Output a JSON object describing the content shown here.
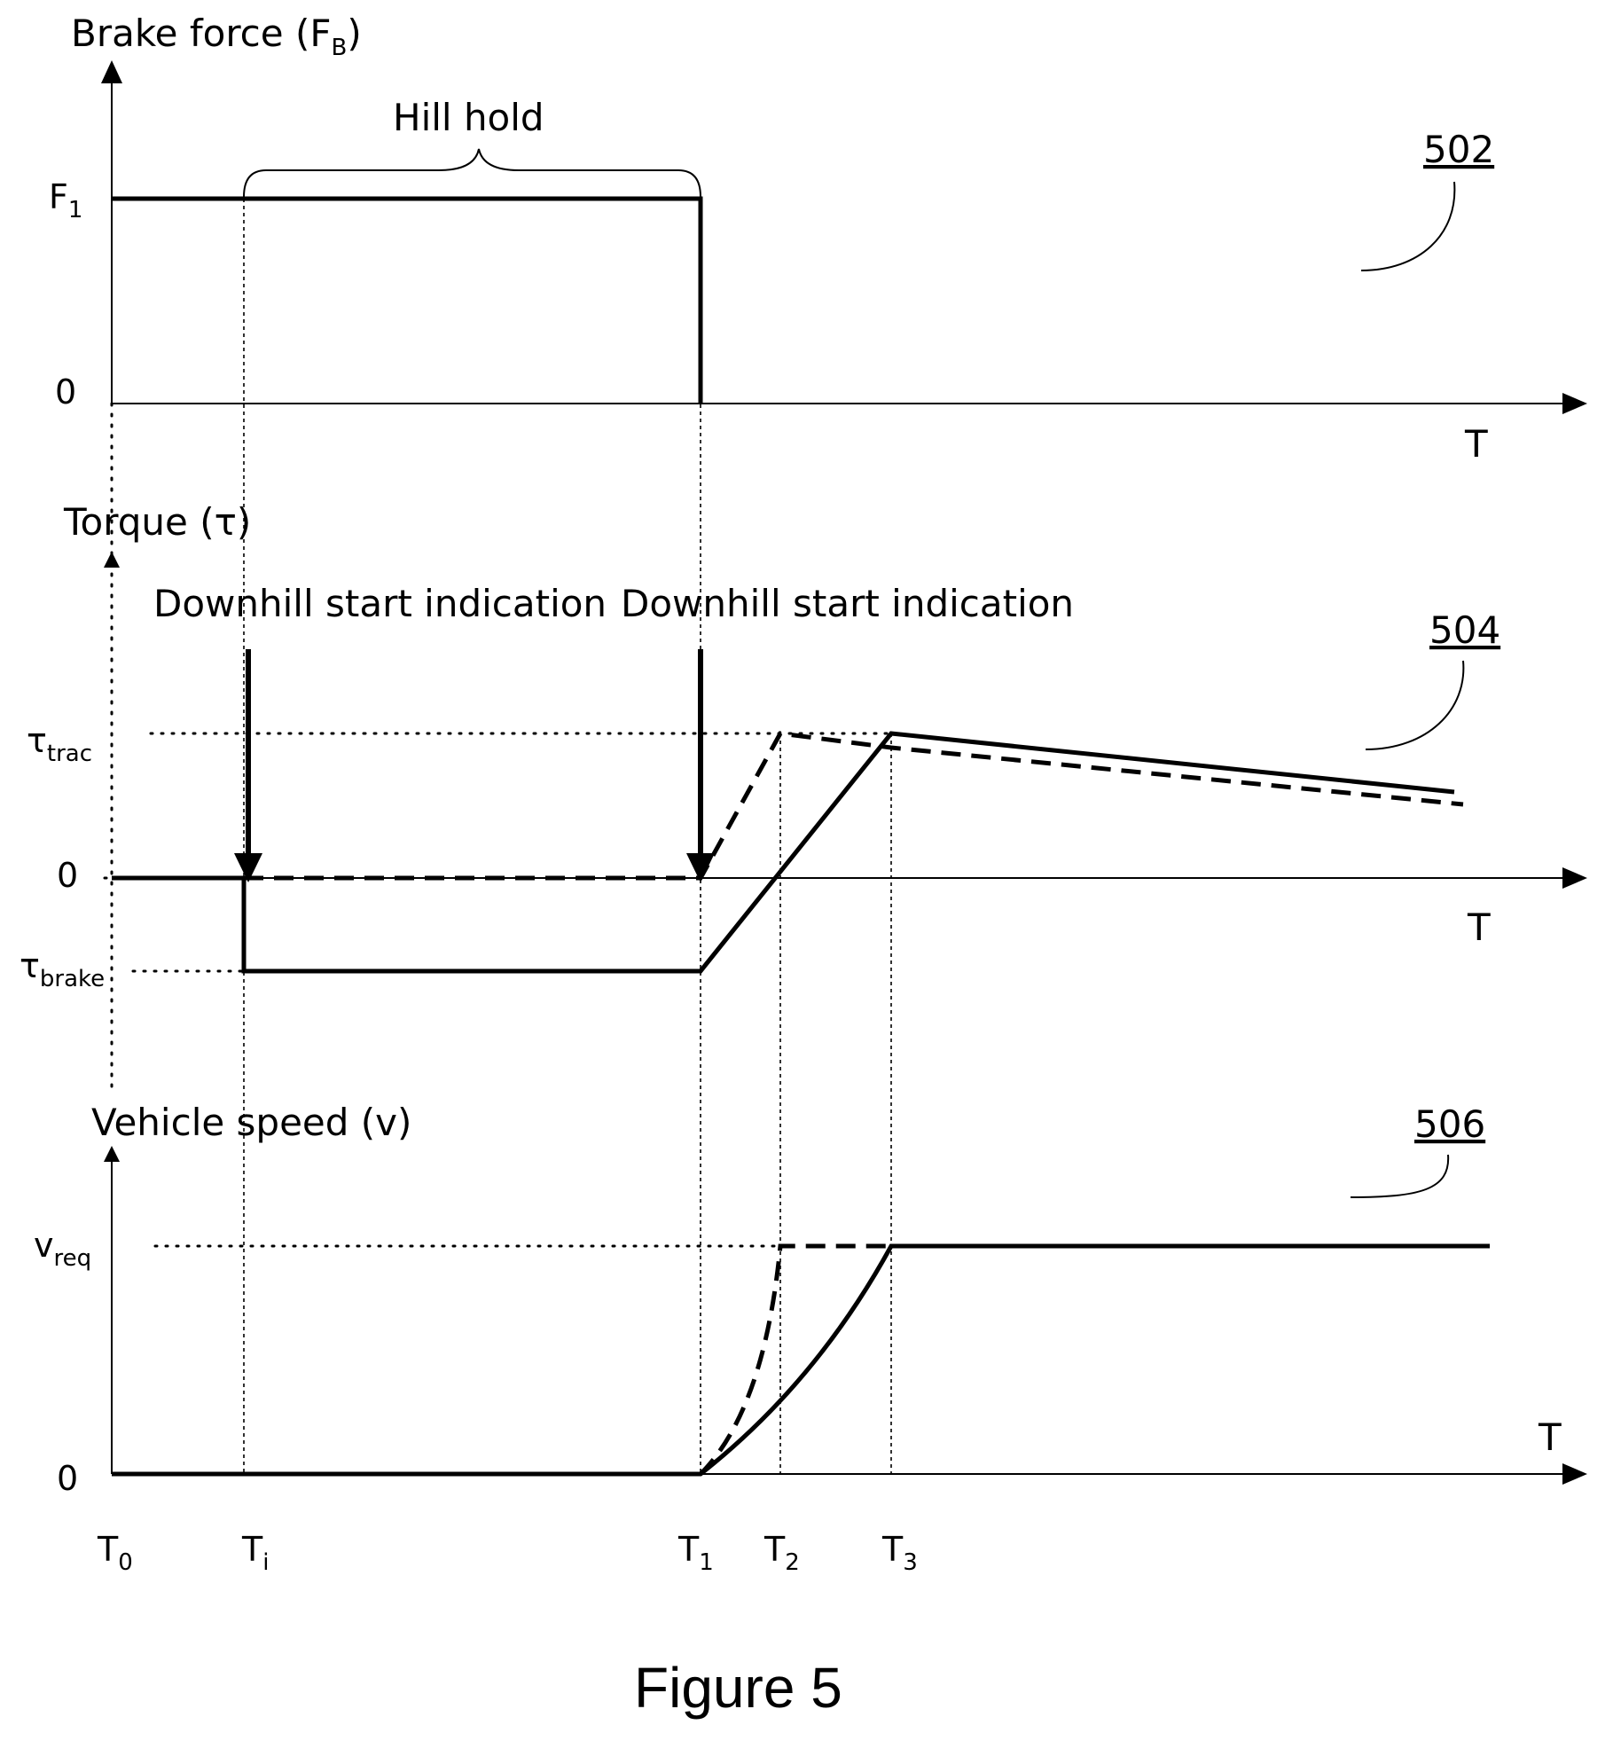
{
  "panel_502": {
    "y_title": "Brake force (F",
    "y_title_sub": "B",
    "y_title_end": ")",
    "tick_f1": "F",
    "tick_f1_sub": "1",
    "tick_zero": "0",
    "x_label": "T",
    "brace_label": "Hill hold",
    "ref": "502"
  },
  "panel_504": {
    "y_title": "Torque (τ)",
    "tick_trac": "τ",
    "tick_trac_sub": "trac",
    "tick_zero": "0",
    "tick_brake": "τ",
    "tick_brake_sub": "brake",
    "x_label": "T",
    "annotation_left": "Downhill start indication",
    "annotation_right": "Downhill start indication",
    "ref": "504"
  },
  "panel_506": {
    "y_title": "Vehicle speed (v)",
    "tick_vreq": "v",
    "tick_vreq_sub": "req",
    "tick_zero": "0",
    "x_label": "T",
    "ref": "506"
  },
  "time_ticks": [
    {
      "main": "T",
      "sub": "0"
    },
    {
      "main": "T",
      "sub": "i"
    },
    {
      "main": "T",
      "sub": "1"
    },
    {
      "main": "T",
      "sub": "2"
    },
    {
      "main": "T",
      "sub": "3"
    }
  ],
  "caption": "Figure 5"
}
